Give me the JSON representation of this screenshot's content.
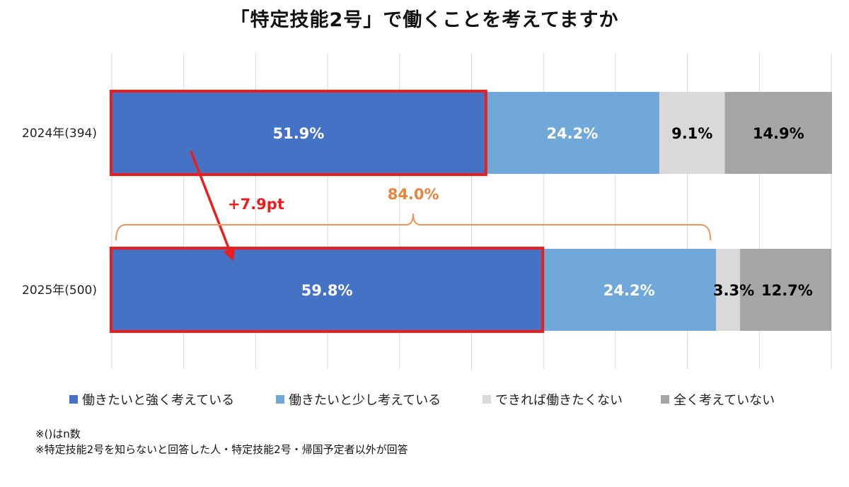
{
  "colors": {
    "series": [
      "#4472C4",
      "#70A8DA",
      "#D9D9D9",
      "#A6A6A6"
    ],
    "highlight": "#EE1C1C",
    "bracket": "#F0955A",
    "bracket_text": "#E8843E",
    "grid": "#D9D9D9"
  },
  "chart_data": {
    "type": "bar",
    "orientation": "horizontal",
    "stacked": true,
    "percent_scale": true,
    "title": "「特定技能2号」で働くことを考えてますか",
    "categories": [
      "2024年(394)",
      "2025年(500)"
    ],
    "series": [
      {
        "name": "働きたいと強く考えている",
        "values": [
          51.9,
          59.8
        ],
        "labels": [
          "51.9%",
          "59.8%"
        ],
        "label_color": "#ffffff"
      },
      {
        "name": "働きたいと少し考えている",
        "values": [
          24.2,
          24.2
        ],
        "labels": [
          "24.2%",
          "24.2%"
        ],
        "label_color": "#ffffff"
      },
      {
        "name": "できれば働きたくない",
        "values": [
          9.1,
          3.3
        ],
        "labels": [
          "9.1%",
          "3.3%"
        ],
        "label_color": "#000000"
      },
      {
        "name": "全く考えていない",
        "values": [
          14.9,
          12.7
        ],
        "labels": [
          "14.9%",
          "12.7%"
        ],
        "label_color": "#000000"
      }
    ],
    "xlim": [
      0,
      100
    ],
    "grid": true,
    "legend_position": "bottom",
    "annotations": {
      "change": "+7.9pt",
      "bracket_total": "84.0%"
    }
  },
  "notes": [
    "※()はn数",
    "※特定技能2号を知らないと回答した人・特定技能2号・帰国予定者以外が回答"
  ]
}
